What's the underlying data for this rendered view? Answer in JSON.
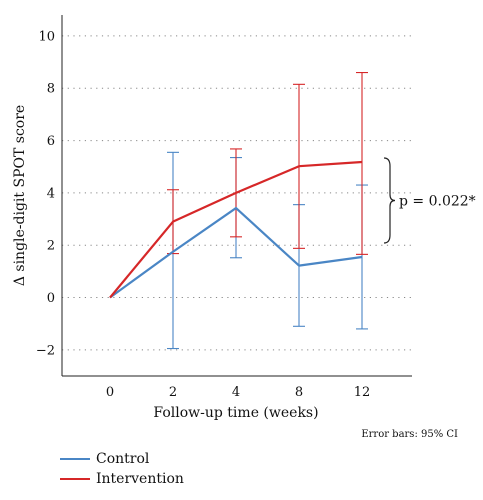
{
  "chart_data": {
    "type": "line",
    "x": [
      0,
      2,
      4,
      8,
      12
    ],
    "xticks": [
      "0",
      "2",
      "4",
      "8",
      "12"
    ],
    "yticks": [
      "-2",
      "0",
      "2",
      "4",
      "6",
      "8",
      "10"
    ],
    "xlabel": "Follow-up time (weeks)",
    "ylabel": "Δ single-digit SPOT score",
    "ylim": [
      -3,
      10.8
    ],
    "grid": "horizontal dotted",
    "series": [
      {
        "name": "Control",
        "color": "#4a86c5",
        "values": [
          0,
          1.75,
          3.42,
          1.22,
          1.55
        ],
        "ci_low": [
          0,
          -1.95,
          1.52,
          -1.1,
          -1.2
        ],
        "ci_high": [
          0,
          5.55,
          5.35,
          3.55,
          4.3
        ]
      },
      {
        "name": "Intervention",
        "color": "#d62728",
        "values": [
          0,
          2.9,
          4.0,
          5.02,
          5.18
        ],
        "ci_low": [
          0,
          1.68,
          2.32,
          1.88,
          1.65
        ],
        "ci_high": [
          0,
          4.12,
          5.68,
          8.15,
          8.6
        ]
      }
    ],
    "annotation": "p = 0.022*",
    "note": "Error bars: 95% CI"
  }
}
